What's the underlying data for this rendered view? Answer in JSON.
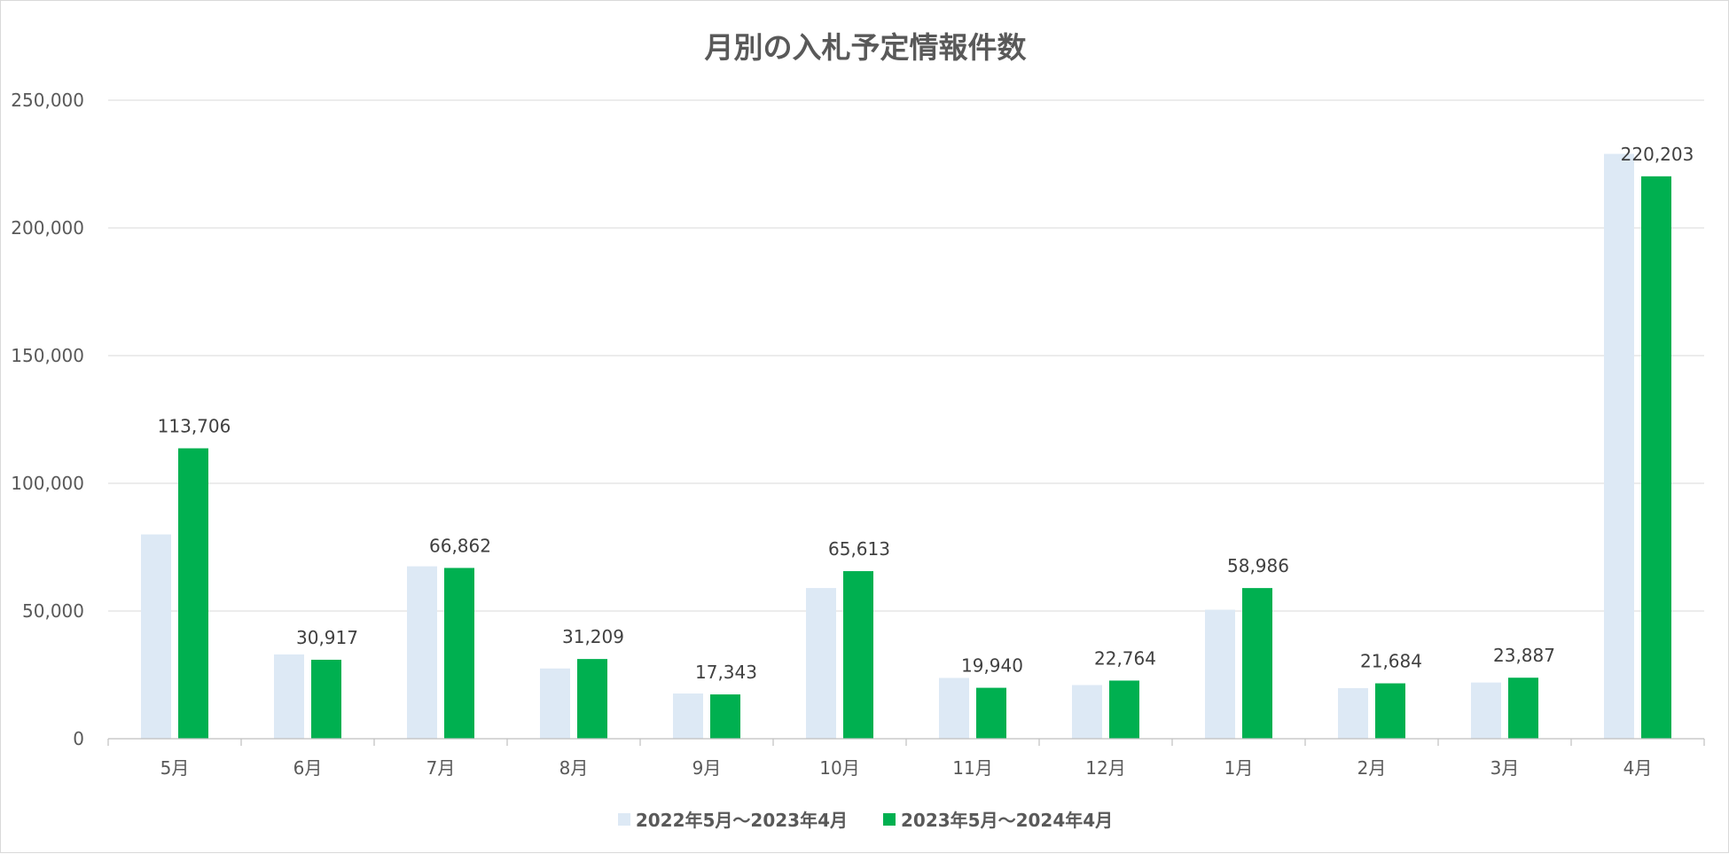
{
  "chart_data": {
    "type": "bar",
    "title": "月別の入札予定情報件数",
    "categories": [
      "5月",
      "6月",
      "7月",
      "8月",
      "9月",
      "10月",
      "11月",
      "12月",
      "1月",
      "2月",
      "3月",
      "4月"
    ],
    "series": [
      {
        "name": "2022年5月～2023年4月",
        "color": "#dde9f5",
        "values": [
          80000,
          33000,
          67500,
          27500,
          17700,
          59000,
          23800,
          21000,
          50500,
          19800,
          22000,
          229000
        ]
      },
      {
        "name": "2023年5月～2024年4月",
        "color": "#00b050",
        "values": [
          113706,
          30917,
          66862,
          31209,
          17343,
          65613,
          19940,
          22764,
          58986,
          21684,
          23887,
          220203
        ],
        "data_labels": [
          "113,706",
          "30,917",
          "66,862",
          "31,209",
          "17,343",
          "65,613",
          "19,940",
          "22,764",
          "58,986",
          "21,684",
          "23,887",
          "220,203"
        ]
      }
    ],
    "ylim": [
      0,
      250000
    ],
    "yticks": [
      0,
      50000,
      100000,
      150000,
      200000,
      250000
    ],
    "ytick_labels": [
      "0",
      "50,000",
      "100,000",
      "150,000",
      "200,000",
      "250,000"
    ],
    "grid": true,
    "legend_position": "bottom"
  }
}
